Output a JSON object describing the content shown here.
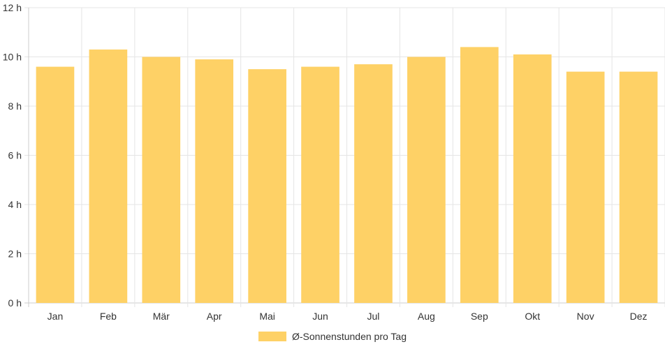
{
  "chart_data": {
    "type": "bar",
    "categories": [
      "Jan",
      "Feb",
      "Mär",
      "Apr",
      "Mai",
      "Jun",
      "Jul",
      "Aug",
      "Sep",
      "Okt",
      "Nov",
      "Dez"
    ],
    "series": [
      {
        "name": "Ø-Sonnenstunden pro Tag",
        "values": [
          9.6,
          10.3,
          10.0,
          9.9,
          9.5,
          9.6,
          9.7,
          10.0,
          10.4,
          10.1,
          9.4,
          9.4
        ],
        "color": "#fed166"
      }
    ],
    "ylim": [
      0,
      12
    ],
    "yticks": [
      0,
      2,
      4,
      6,
      8,
      10,
      12
    ],
    "ytick_labels": [
      "0 h",
      "2 h",
      "4 h",
      "6 h",
      "8 h",
      "10 h",
      "12 h"
    ],
    "grid": true,
    "legend_position": "bottom",
    "grid_color": "#e5e5e5",
    "axis_color": "#cccccc"
  }
}
